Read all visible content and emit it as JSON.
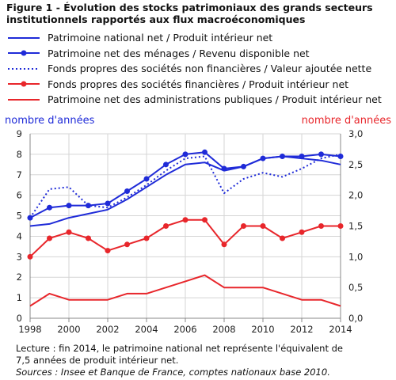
{
  "title": "Figure 1 - Évolution des stocks patrimoniaux des grands secteurs institutionnels rapportés aux flux macroéconomiques",
  "legend": [
    {
      "label": "Patrimoine national net / Produit intérieur net",
      "color": "#1f2bd8",
      "style": "solid",
      "marker": false
    },
    {
      "label": "Patrimoine net des ménages / Revenu disponible net",
      "color": "#1f2bd8",
      "style": "solid",
      "marker": true
    },
    {
      "label": "Fonds propres des sociétés non financières / Valeur ajoutée nette",
      "color": "#1f2bd8",
      "style": "dotted",
      "marker": false
    },
    {
      "label": "Fonds propres des sociétés financières / Produit intérieur net",
      "color": "#e8262b",
      "style": "solid",
      "marker": true
    },
    {
      "label": "Patrimoine net des administrations publiques / Produit intérieur net",
      "color": "#e8262b",
      "style": "solid",
      "marker": false
    }
  ],
  "note": {
    "line1": "Lecture : fin 2014, le patrimoine national net représente l'équivalent de",
    "line2": "7,5 années de produit intérieur net.",
    "source": "Sources : Insee et Banque de France, comptes nationaux base 2010."
  },
  "chart_data": {
    "type": "line",
    "x": [
      1998,
      1999,
      2000,
      2001,
      2002,
      2003,
      2004,
      2005,
      2006,
      2007,
      2008,
      2009,
      2010,
      2011,
      2012,
      2013,
      2014
    ],
    "x_ticks": [
      1998,
      2000,
      2002,
      2004,
      2006,
      2008,
      2010,
      2012,
      2014
    ],
    "x_tick_labels": [
      "1998",
      "2000",
      "2002",
      "2004",
      "2006",
      "2008",
      "2010",
      "2012",
      "2014"
    ],
    "y_left": {
      "label": "nombre d'années",
      "lim": [
        0,
        9
      ],
      "ticks": [
        0,
        1,
        2,
        3,
        4,
        5,
        6,
        7,
        8,
        9
      ],
      "tick_labels": [
        "0",
        "1",
        "2",
        "3",
        "4",
        "5",
        "6",
        "7",
        "8",
        "9"
      ],
      "color": "#1f2bd8"
    },
    "y_right": {
      "label": "nombre d'années",
      "lim": [
        0,
        3
      ],
      "ticks": [
        0,
        0.5,
        1,
        1.5,
        2,
        2.5,
        3
      ],
      "tick_labels": [
        "0,0",
        "0,5",
        "1,0",
        "1,5",
        "2,0",
        "2,5",
        "3,0"
      ],
      "color": "#e8262b"
    },
    "grid": true,
    "series": [
      {
        "name": "Patrimoine national net / Produit intérieur net",
        "axis": "left",
        "color": "#1f2bd8",
        "style": "solid",
        "marker": false,
        "values": [
          4.5,
          4.6,
          4.9,
          5.1,
          5.3,
          5.8,
          6.4,
          7.0,
          7.5,
          7.6,
          7.2,
          7.4,
          7.8,
          7.9,
          7.8,
          7.7,
          7.5
        ]
      },
      {
        "name": "Patrimoine net des ménages / Revenu disponible net",
        "axis": "left",
        "color": "#1f2bd8",
        "style": "solid",
        "marker": true,
        "values": [
          4.9,
          5.4,
          5.5,
          5.5,
          5.6,
          6.2,
          6.8,
          7.5,
          8.0,
          8.1,
          7.3,
          7.4,
          7.8,
          7.9,
          7.9,
          8.0,
          7.9
        ]
      },
      {
        "name": "Fonds propres des sociétés non financières / Valeur ajoutée nette",
        "axis": "left",
        "color": "#1f2bd8",
        "style": "dotted",
        "marker": false,
        "values": [
          4.9,
          6.3,
          6.4,
          5.5,
          5.4,
          5.9,
          6.5,
          7.2,
          7.8,
          7.9,
          6.1,
          6.8,
          7.1,
          6.9,
          7.3,
          7.8,
          8.0
        ]
      },
      {
        "name": "Fonds propres des sociétés financières / Produit intérieur net",
        "axis": "right",
        "color": "#e8262b",
        "style": "solid",
        "marker": true,
        "values": [
          1.0,
          1.3,
          1.4,
          1.3,
          1.1,
          1.2,
          1.3,
          1.5,
          1.6,
          1.6,
          1.2,
          1.5,
          1.5,
          1.3,
          1.4,
          1.5,
          1.5
        ]
      },
      {
        "name": "Patrimoine net des administrations publiques / Produit intérieur net",
        "axis": "right",
        "color": "#e8262b",
        "style": "solid",
        "marker": false,
        "values": [
          0.2,
          0.4,
          0.3,
          0.3,
          0.3,
          0.4,
          0.4,
          0.5,
          0.6,
          0.7,
          0.5,
          0.5,
          0.5,
          0.4,
          0.3,
          0.3,
          0.2
        ]
      }
    ]
  }
}
